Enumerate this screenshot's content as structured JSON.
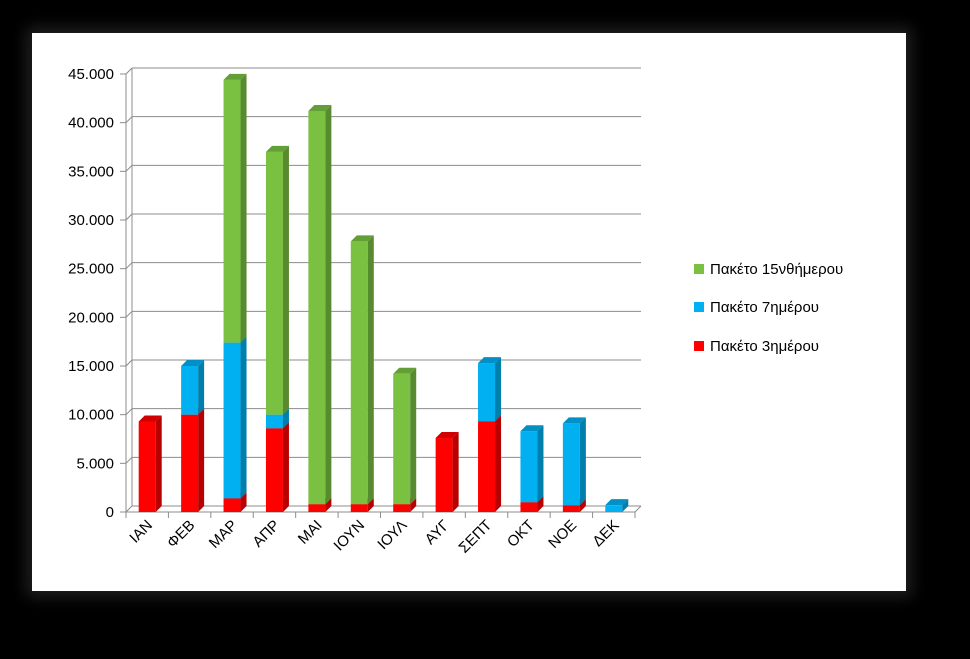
{
  "chart_data": {
    "type": "bar",
    "stacked": true,
    "style": "3d-column",
    "categories": [
      "ΙΑΝ",
      "ΦΕΒ",
      "ΜΑΡ",
      "ΑΠΡ",
      "ΜΑΙ",
      "ΙΟΥΝ",
      "ΙΟΥΛ",
      "ΑΥΓ",
      "ΣΕΠΤ",
      "ΟΚΤ",
      "ΝΟΕ",
      "ΔΕΚ"
    ],
    "series": [
      {
        "name": "Πακέτο 3ημέρου",
        "color": "#ff0000",
        "values": [
          9300,
          10000,
          1400,
          8600,
          800,
          800,
          800,
          7600,
          9300,
          1000,
          700,
          0
        ]
      },
      {
        "name": "Πακέτο 7ημέρου",
        "color": "#00b0f0",
        "values": [
          0,
          5000,
          16000,
          1400,
          0,
          0,
          0,
          0,
          6000,
          7300,
          8400,
          700
        ]
      },
      {
        "name": "Πακέτο 15νθήμερου",
        "color": "#7ac142",
        "values": [
          0,
          0,
          27000,
          27000,
          40400,
          27000,
          13400,
          0,
          0,
          0,
          0,
          0
        ]
      }
    ],
    "y_ticks": [
      "0",
      "5.000",
      "10.000",
      "15.000",
      "20.000",
      "25.000",
      "30.000",
      "35.000",
      "40.000",
      "45.000"
    ],
    "ylim": [
      0,
      45000
    ],
    "title": "",
    "xlabel": "",
    "ylabel": "",
    "grid": true,
    "legend_position": "right"
  }
}
